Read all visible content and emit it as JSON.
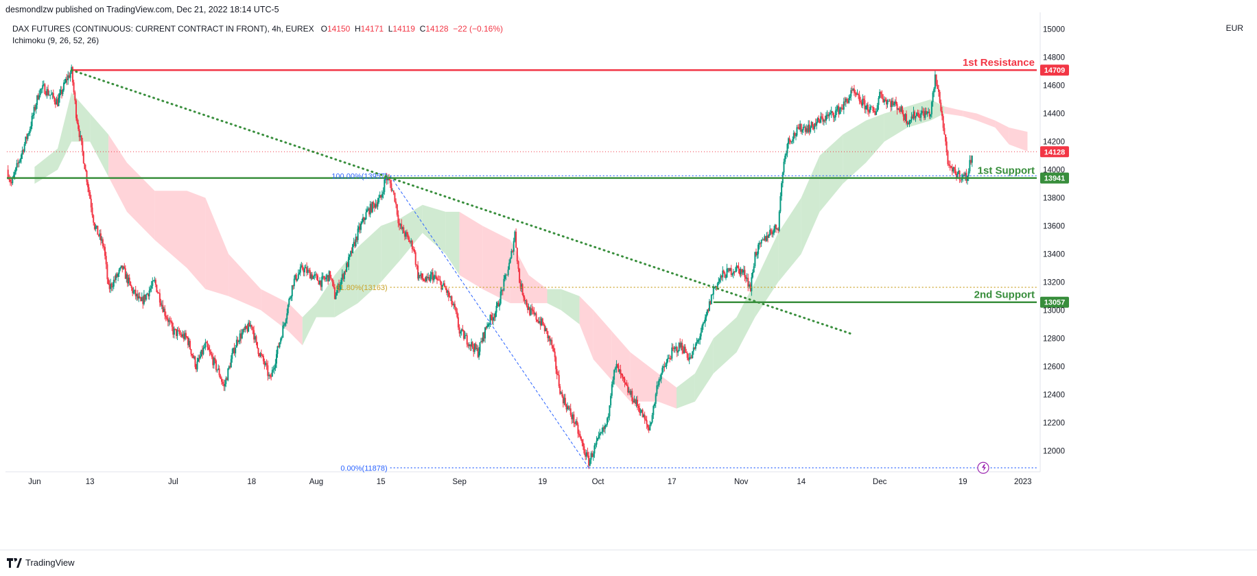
{
  "header": {
    "published": "desmondlzw published on TradingView.com, Dec 21, 2022 18:14 UTC-5"
  },
  "symbol": {
    "name": "DAX FUTURES (CONTINUOUS: CURRENT CONTRACT IN FRONT), 4h, EUREX",
    "open_label": "O",
    "open": "14150",
    "high_label": "H",
    "high": "14171",
    "low_label": "L",
    "low": "14119",
    "close_label": "C",
    "close": "14128",
    "change": "−22 (−0.16%)"
  },
  "indicator": "Ichimoku (9, 26, 52, 26)",
  "currency": "EUR",
  "brand": "TradingView",
  "colors": {
    "up": "#089981",
    "down": "#f23645",
    "resistance": "#f23645",
    "support": "#388e3c",
    "fib": "#2962ff",
    "fib_618": "#c9a227",
    "trendline": "#388e3c",
    "cloud_bull": "#c8e6c9",
    "cloud_bear": "#ffcdd2"
  },
  "chart_data": {
    "type": "candlestick",
    "interval": "4h",
    "ylim": [
      11850,
      15120
    ],
    "y_ticks": [
      12000,
      12200,
      12400,
      12600,
      12800,
      13000,
      13200,
      13400,
      13600,
      13800,
      14000,
      14200,
      14400,
      14600,
      14800,
      15000
    ],
    "x_ticks": [
      "Jun",
      "13",
      "Jul",
      "18",
      "Aug",
      "15",
      "Sep",
      "19",
      "Oct",
      "17",
      "Nov",
      "14",
      "Dec",
      "19",
      "2023"
    ],
    "x_tick_dates": [
      "2022-06-01",
      "2022-06-13",
      "2022-07-01",
      "2022-07-18",
      "2022-08-01",
      "2022-08-15",
      "2022-09-01",
      "2022-09-19",
      "2022-10-01",
      "2022-10-17",
      "2022-11-01",
      "2022-11-14",
      "2022-12-01",
      "2022-12-19",
      "2023-01-01"
    ],
    "price_path": [
      [
        "2022-05-26",
        14000
      ],
      [
        "2022-05-27",
        13900
      ],
      [
        "2022-05-31",
        14300
      ],
      [
        "2022-06-02",
        14560
      ],
      [
        "2022-06-03",
        14580
      ],
      [
        "2022-06-06",
        14480
      ],
      [
        "2022-06-08",
        14650
      ],
      [
        "2022-06-09",
        14700
      ],
      [
        "2022-06-10",
        14400
      ],
      [
        "2022-06-13",
        13800
      ],
      [
        "2022-06-14",
        13600
      ],
      [
        "2022-06-16",
        13450
      ],
      [
        "2022-06-17",
        13150
      ],
      [
        "2022-06-20",
        13300
      ],
      [
        "2022-06-22",
        13150
      ],
      [
        "2022-06-24",
        13050
      ],
      [
        "2022-06-27",
        13200
      ],
      [
        "2022-06-29",
        13000
      ],
      [
        "2022-07-01",
        12850
      ],
      [
        "2022-07-04",
        12800
      ],
      [
        "2022-07-06",
        12600
      ],
      [
        "2022-07-08",
        12750
      ],
      [
        "2022-07-11",
        12550
      ],
      [
        "2022-07-12",
        12450
      ],
      [
        "2022-07-14",
        12700
      ],
      [
        "2022-07-15",
        12800
      ],
      [
        "2022-07-18",
        12900
      ],
      [
        "2022-07-19",
        12750
      ],
      [
        "2022-07-21",
        12600
      ],
      [
        "2022-07-22",
        12500
      ],
      [
        "2022-07-25",
        12900
      ],
      [
        "2022-07-27",
        13200
      ],
      [
        "2022-07-29",
        13300
      ],
      [
        "2022-08-02",
        13200
      ],
      [
        "2022-08-04",
        13250
      ],
      [
        "2022-08-05",
        13100
      ],
      [
        "2022-08-08",
        13350
      ],
      [
        "2022-08-10",
        13550
      ],
      [
        "2022-08-12",
        13700
      ],
      [
        "2022-08-15",
        13800
      ],
      [
        "2022-08-16",
        13950
      ],
      [
        "2022-08-17",
        13900
      ],
      [
        "2022-08-18",
        13800
      ],
      [
        "2022-08-19",
        13600
      ],
      [
        "2022-08-22",
        13450
      ],
      [
        "2022-08-23",
        13250
      ],
      [
        "2022-08-25",
        13200
      ],
      [
        "2022-08-26",
        13250
      ],
      [
        "2022-08-29",
        13150
      ],
      [
        "2022-08-31",
        13000
      ],
      [
        "2022-09-01",
        12850
      ],
      [
        "2022-09-05",
        12700
      ],
      [
        "2022-09-07",
        12900
      ],
      [
        "2022-09-09",
        13000
      ],
      [
        "2022-09-12",
        13350
      ],
      [
        "2022-09-13",
        13550
      ],
      [
        "2022-09-14",
        13200
      ],
      [
        "2022-09-16",
        13000
      ],
      [
        "2022-09-19",
        12900
      ],
      [
        "2022-09-21",
        12750
      ],
      [
        "2022-09-23",
        12400
      ],
      [
        "2022-09-26",
        12200
      ],
      [
        "2022-09-28",
        12000
      ],
      [
        "2022-09-29",
        11920
      ],
      [
        "2022-09-30",
        12000
      ],
      [
        "2022-10-03",
        12200
      ],
      [
        "2022-10-04",
        12500
      ],
      [
        "2022-10-05",
        12600
      ],
      [
        "2022-10-07",
        12450
      ],
      [
        "2022-10-10",
        12300
      ],
      [
        "2022-10-12",
        12150
      ],
      [
        "2022-10-13",
        12300
      ],
      [
        "2022-10-14",
        12500
      ],
      [
        "2022-10-17",
        12700
      ],
      [
        "2022-10-19",
        12750
      ],
      [
        "2022-10-21",
        12650
      ],
      [
        "2022-10-24",
        12900
      ],
      [
        "2022-10-26",
        13150
      ],
      [
        "2022-10-28",
        13250
      ],
      [
        "2022-10-31",
        13300
      ],
      [
        "2022-11-02",
        13250
      ],
      [
        "2022-11-03",
        13150
      ],
      [
        "2022-11-04",
        13400
      ],
      [
        "2022-11-07",
        13550
      ],
      [
        "2022-11-09",
        13600
      ],
      [
        "2022-11-10",
        14000
      ],
      [
        "2022-11-11",
        14200
      ],
      [
        "2022-11-14",
        14300
      ],
      [
        "2022-11-16",
        14300
      ],
      [
        "2022-11-18",
        14350
      ],
      [
        "2022-11-21",
        14400
      ],
      [
        "2022-11-23",
        14450
      ],
      [
        "2022-11-25",
        14550
      ],
      [
        "2022-11-28",
        14450
      ],
      [
        "2022-11-30",
        14400
      ],
      [
        "2022-12-01",
        14550
      ],
      [
        "2022-12-02",
        14500
      ],
      [
        "2022-12-05",
        14450
      ],
      [
        "2022-12-07",
        14350
      ],
      [
        "2022-12-09",
        14400
      ],
      [
        "2022-12-12",
        14400
      ],
      [
        "2022-12-13",
        14650
      ],
      [
        "2022-12-14",
        14500
      ],
      [
        "2022-12-15",
        14250
      ],
      [
        "2022-12-16",
        14000
      ],
      [
        "2022-12-19",
        13950
      ],
      [
        "2022-12-20",
        13950
      ],
      [
        "2022-12-21",
        14128
      ]
    ],
    "ichimoku_cloud": [
      [
        "2022-06-01",
        13900,
        14020
      ],
      [
        "2022-06-06",
        14000,
        14150
      ],
      [
        "2022-06-09",
        14200,
        14550
      ],
      [
        "2022-06-13",
        14200,
        14400
      ],
      [
        "2022-06-17",
        13950,
        14250
      ],
      [
        "2022-06-21",
        13700,
        14050
      ],
      [
        "2022-06-27",
        13500,
        13850
      ],
      [
        "2022-07-04",
        13300,
        13850
      ],
      [
        "2022-07-08",
        13150,
        13800
      ],
      [
        "2022-07-13",
        13100,
        13400
      ],
      [
        "2022-07-20",
        13000,
        13150
      ],
      [
        "2022-07-26",
        12850,
        13050
      ],
      [
        "2022-07-29",
        12750,
        12950
      ],
      [
        "2022-08-01",
        12950,
        13050
      ],
      [
        "2022-08-05",
        12950,
        13250
      ],
      [
        "2022-08-10",
        13050,
        13450
      ],
      [
        "2022-08-15",
        13200,
        13600
      ],
      [
        "2022-08-19",
        13350,
        13650
      ],
      [
        "2022-08-24",
        13550,
        13750
      ],
      [
        "2022-08-29",
        13400,
        13700
      ],
      [
        "2022-09-01",
        13250,
        13700
      ],
      [
        "2022-09-06",
        13150,
        13600
      ],
      [
        "2022-09-12",
        13050,
        13500
      ],
      [
        "2022-09-16",
        13050,
        13250
      ],
      [
        "2022-09-20",
        13050,
        13150
      ],
      [
        "2022-09-23",
        13000,
        13150
      ],
      [
        "2022-09-27",
        12900,
        13100
      ],
      [
        "2022-09-30",
        12650,
        13000
      ],
      [
        "2022-10-04",
        12500,
        12850
      ],
      [
        "2022-10-08",
        12350,
        12700
      ],
      [
        "2022-10-14",
        12350,
        12550
      ],
      [
        "2022-10-18",
        12300,
        12450
      ],
      [
        "2022-10-22",
        12350,
        12550
      ],
      [
        "2022-10-26",
        12550,
        12800
      ],
      [
        "2022-10-31",
        12700,
        12950
      ],
      [
        "2022-11-04",
        12950,
        13200
      ],
      [
        "2022-11-09",
        13200,
        13550
      ],
      [
        "2022-11-14",
        13400,
        13800
      ],
      [
        "2022-11-18",
        13700,
        14100
      ],
      [
        "2022-11-23",
        13900,
        14250
      ],
      [
        "2022-11-28",
        14050,
        14350
      ],
      [
        "2022-12-02",
        14200,
        14400
      ],
      [
        "2022-12-07",
        14300,
        14450
      ],
      [
        "2022-12-12",
        14350,
        14500
      ],
      [
        "2022-12-15",
        14400,
        14450
      ],
      [
        "2022-12-19",
        14380,
        14420
      ],
      [
        "2022-12-22",
        14350,
        14400
      ],
      [
        "2022-12-26",
        14300,
        14350
      ],
      [
        "2022-12-29",
        14180,
        14300
      ],
      [
        "2023-01-02",
        14130,
        14270
      ]
    ],
    "annotations": {
      "resistance": {
        "label": "1st Resistance",
        "price": 14709,
        "tag": "14709"
      },
      "support_1": {
        "label": "1st Support",
        "price": 13941,
        "tag": "13941"
      },
      "support_2": {
        "label": "2nd Support",
        "price": 13057,
        "tag": "13057"
      },
      "last_price": {
        "price": 14128,
        "tag": "14128"
      },
      "fib_100": {
        "label": "100.00%(13957)",
        "price": 13957
      },
      "fib_618": {
        "label": "61.80%(13163)",
        "price": 13163
      },
      "fib_0": {
        "label": "0.00%(11878)",
        "price": 11878
      },
      "trendline": {
        "from": [
          "2022-06-09",
          14709
        ],
        "to": [
          "2022-11-25",
          12830
        ]
      }
    }
  }
}
